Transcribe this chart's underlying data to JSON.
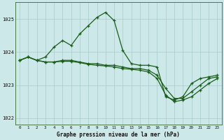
{
  "title": "Graphe pression niveau de la mer (hPa)",
  "bg_color": "#cce8e8",
  "grid_color": "#aacccc",
  "line_color": "#1a5c1a",
  "x_labels": [
    "0",
    "1",
    "2",
    "3",
    "4",
    "5",
    "6",
    "7",
    "8",
    "9",
    "10",
    "11",
    "12",
    "13",
    "14",
    "15",
    "16",
    "17",
    "18",
    "19",
    "20",
    "21",
    "22",
    "23"
  ],
  "ylim": [
    1021.8,
    1025.5
  ],
  "yticks": [
    1022,
    1023,
    1024,
    1025
  ],
  "series_main": [
    1023.75,
    1023.85,
    1023.75,
    1023.85,
    1024.15,
    1024.35,
    1024.2,
    1024.55,
    1024.8,
    1025.05,
    1025.2,
    1024.95,
    1024.05,
    1023.65,
    1023.6,
    1023.6,
    1023.55,
    1022.65,
    1022.55,
    1022.65,
    1023.05,
    1023.2,
    1023.25,
    1023.3
  ],
  "series_mid": [
    1023.75,
    1023.85,
    1023.75,
    1023.7,
    1023.7,
    1023.75,
    1023.75,
    1023.7,
    1023.65,
    1023.65,
    1023.6,
    1023.6,
    1023.55,
    1023.5,
    1023.5,
    1023.45,
    1023.3,
    1022.9,
    1022.6,
    1022.6,
    1022.8,
    1023.0,
    1023.2,
    1023.25
  ],
  "series_low": [
    1023.75,
    1023.85,
    1023.75,
    1023.7,
    1023.7,
    1023.72,
    1023.72,
    1023.68,
    1023.63,
    1023.6,
    1023.58,
    1023.55,
    1023.5,
    1023.48,
    1023.45,
    1023.4,
    1023.2,
    1022.7,
    1022.5,
    1022.55,
    1022.65,
    1022.85,
    1023.05,
    1023.2
  ]
}
